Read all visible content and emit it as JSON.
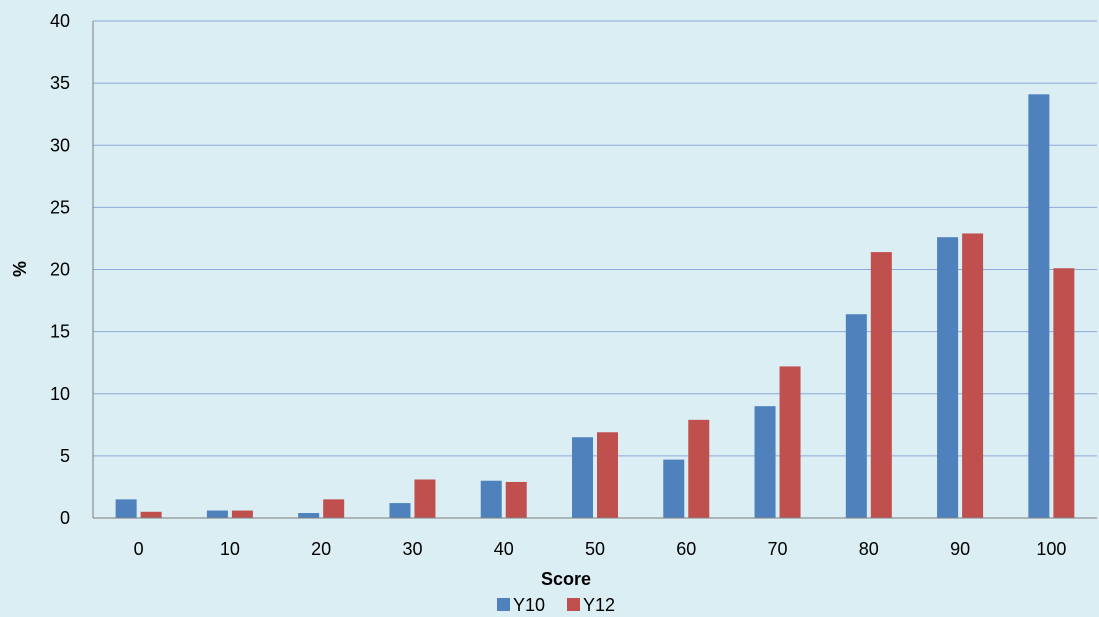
{
  "chart_data": {
    "type": "bar",
    "title": "",
    "xlabel": "Score",
    "ylabel": "%",
    "categories": [
      "0",
      "10",
      "20",
      "30",
      "40",
      "50",
      "60",
      "70",
      "80",
      "90",
      "100"
    ],
    "series": [
      {
        "name": "Y10",
        "color": "#4f81bd",
        "values": [
          1.5,
          0.6,
          0.4,
          1.2,
          3.0,
          6.5,
          4.7,
          9.0,
          16.4,
          22.6,
          34.1
        ]
      },
      {
        "name": "Y12",
        "color": "#c0504d",
        "values": [
          0.5,
          0.6,
          1.5,
          3.1,
          2.9,
          6.9,
          7.9,
          12.2,
          21.4,
          22.9,
          20.1
        ]
      }
    ],
    "ylim": [
      0,
      40
    ],
    "yticks": [
      0,
      5,
      10,
      15,
      20,
      25,
      30,
      35,
      40
    ],
    "grid": true,
    "legend_position": "bottom"
  },
  "colors": {
    "background": "#daeef3",
    "gridline": "#8ea9db",
    "axis": "#7f7f7f"
  }
}
